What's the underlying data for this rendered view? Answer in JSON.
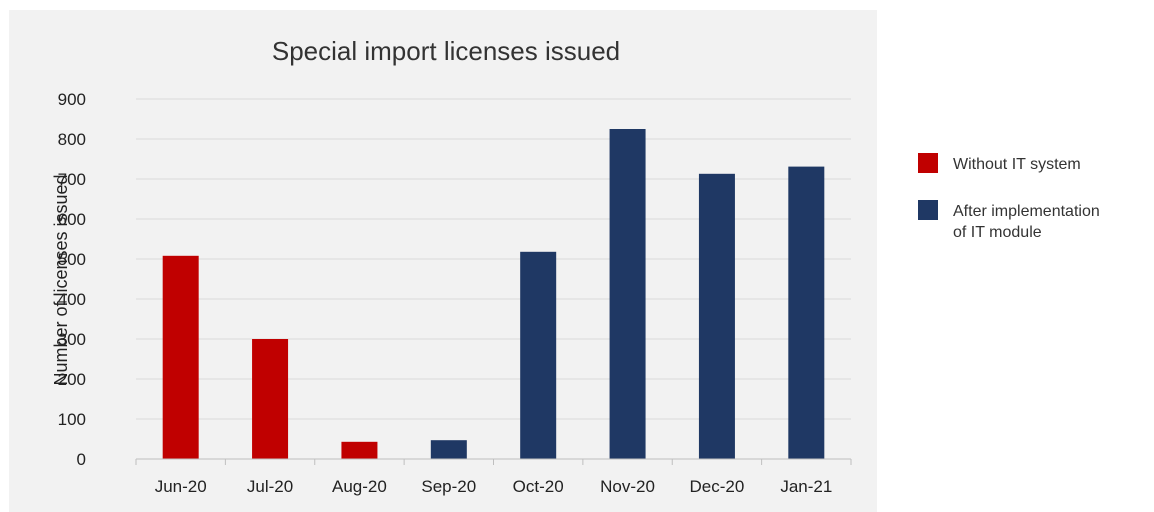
{
  "chart_data": {
    "type": "bar",
    "title": "Special import licenses issued",
    "xlabel": "",
    "ylabel": "Number of licenses issued",
    "ylim": [
      0,
      900
    ],
    "yticks": [
      0,
      100,
      200,
      300,
      400,
      500,
      600,
      700,
      800,
      900
    ],
    "grid": true,
    "legend_position": "right",
    "categories": [
      "Jun-20",
      "Jul-20",
      "Aug-20",
      "Sep-20",
      "Oct-20",
      "Nov-20",
      "Dec-20",
      "Jan-21"
    ],
    "values": [
      508,
      300,
      43,
      47,
      518,
      825,
      713,
      731
    ],
    "bar_groups": [
      0,
      0,
      0,
      1,
      1,
      1,
      1,
      1
    ],
    "legend": [
      {
        "lines": [
          "Without IT system"
        ],
        "color": "#c00000"
      },
      {
        "lines": [
          "After implementation",
          "of IT module"
        ],
        "color": "#1f3864"
      }
    ],
    "colors": {
      "plot_background": "#f2f2f2",
      "grid": "#d9d9d9",
      "axis": "#bfbfbf"
    }
  }
}
